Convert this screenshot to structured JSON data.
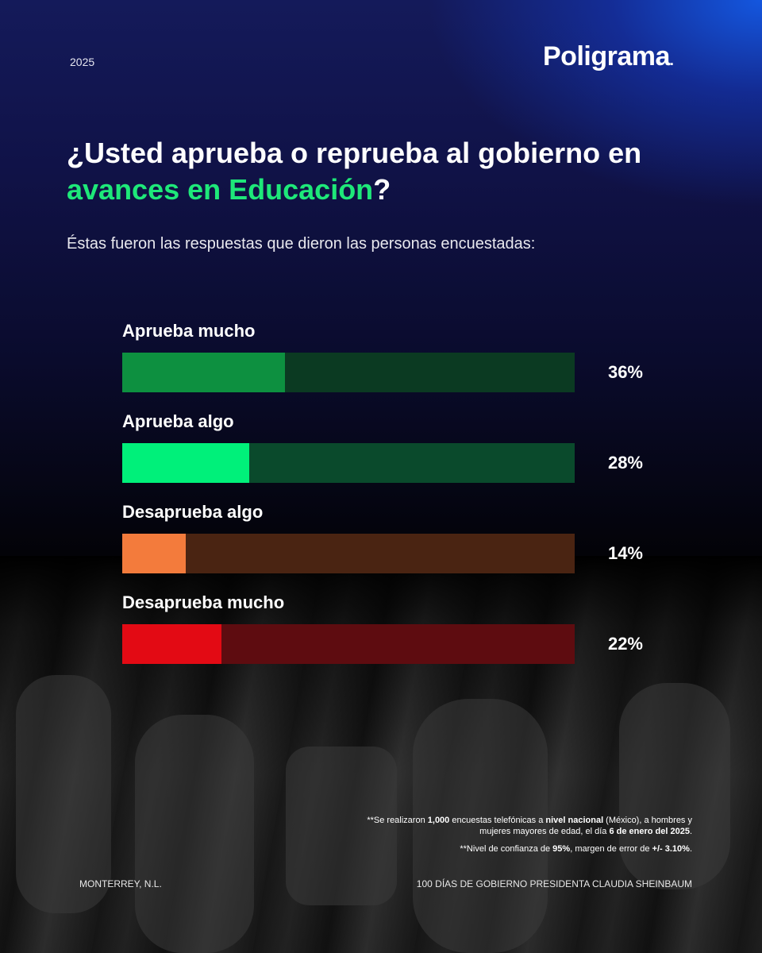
{
  "header": {
    "year": "2025",
    "logo": "Poligrama",
    "logo_dot": "."
  },
  "title": {
    "line1": "¿Usted aprueba o reprueba al gobierno en",
    "accent": "avances en Educación",
    "end": "?"
  },
  "subtitle": "Éstas fueron las respuestas que dieron las personas encuestadas:",
  "colors": {
    "accent_green": "#1ee879",
    "aprueba_mucho": "#0d9040",
    "aprueba_mucho_track": "#0b3a22",
    "aprueba_algo": "#00f07a",
    "aprueba_algo_track": "#0a4a2c",
    "desaprueba_algo": "#f37b3c",
    "desaprueba_algo_track": "#4a2412",
    "desaprueba_mucho": "#e30a14",
    "desaprueba_mucho_track": "#5e0c10"
  },
  "chart_data": {
    "type": "bar",
    "orientation": "horizontal",
    "categories": [
      "Aprueba mucho",
      "Aprueba algo",
      "Desaprueba algo",
      "Desaprueba mucho"
    ],
    "values": [
      36,
      28,
      14,
      22
    ],
    "value_labels": [
      "36%",
      "28%",
      "14%",
      "22%"
    ],
    "xlim": [
      0,
      100
    ],
    "title": "",
    "xlabel": "",
    "ylabel": ""
  },
  "notes": {
    "n1_a": "**Se realizaron ",
    "n1_b": "1,000",
    "n1_c": " encuestas telefónicas a ",
    "n1_d": "nivel nacional",
    "n1_e": " (México), a hombres y",
    "n1_f": "mujeres mayores de edad, el día ",
    "n1_g": "6 de enero del 2025",
    "n1_h": ".",
    "n2_a": "**Nivel de confianza de ",
    "n2_b": "95%",
    "n2_c": ", margen de error de ",
    "n2_d": "+/- 3.10%",
    "n2_e": "."
  },
  "footer": {
    "left": "MONTERREY, N.L.",
    "right": "100 DÍAS DE GOBIERNO PRESIDENTA CLAUDIA SHEINBAUM"
  }
}
